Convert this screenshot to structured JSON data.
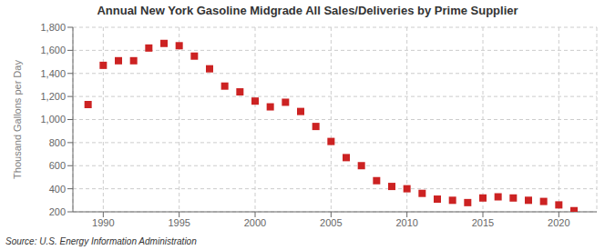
{
  "chart_data": {
    "type": "scatter",
    "title": "Annual New York Gasoline Midgrade All Sales/Deliveries by Prime Supplier",
    "ylabel": "Thousand Gallons per Day",
    "source": "Source: U.S. Energy Information Administration",
    "x": [
      1989,
      1990,
      1991,
      1992,
      1993,
      1994,
      1995,
      1996,
      1997,
      1998,
      1999,
      2000,
      2001,
      2002,
      2003,
      2004,
      2005,
      2006,
      2007,
      2008,
      2009,
      2010,
      2011,
      2012,
      2013,
      2014,
      2015,
      2016,
      2017,
      2018,
      2019,
      2020,
      2021
    ],
    "values": [
      1130,
      1470,
      1510,
      1510,
      1620,
      1660,
      1640,
      1550,
      1440,
      1290,
      1240,
      1160,
      1110,
      1150,
      1070,
      940,
      810,
      670,
      600,
      470,
      420,
      400,
      360,
      310,
      300,
      280,
      320,
      330,
      320,
      300,
      290,
      260,
      210
    ],
    "color": "#cc2222",
    "marker": "square",
    "grid": true,
    "xlim": [
      1988.0,
      2022.5
    ],
    "xticks": [
      1990,
      1995,
      2000,
      2005,
      2010,
      2015,
      2020
    ],
    "ylim": [
      200,
      1800
    ],
    "yticks": [
      200,
      400,
      600,
      800,
      {
        "value": 1000,
        "label": "1,000"
      },
      {
        "value": 1200,
        "label": "1,200"
      },
      {
        "value": 1400,
        "label": "1,400"
      },
      {
        "value": 1600,
        "label": "1,600"
      },
      {
        "value": 1800,
        "label": "1,800"
      }
    ]
  }
}
